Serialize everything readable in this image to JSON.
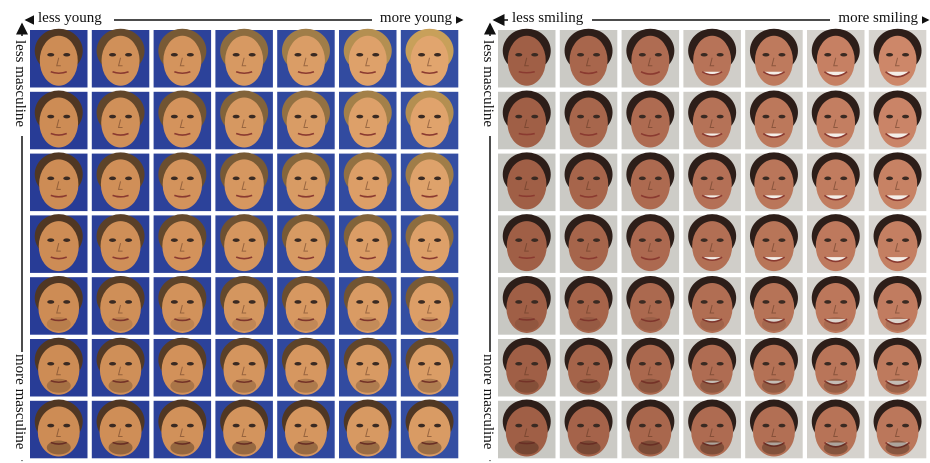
{
  "panels": [
    {
      "top_left": "less young",
      "top_right": "more young",
      "side_top": "less masculine",
      "side_bottom": "more masculine"
    },
    {
      "top_left": "less smiling",
      "top_right": "more smiling",
      "side_top": "less masculine",
      "side_bottom": "more masculine"
    }
  ]
}
